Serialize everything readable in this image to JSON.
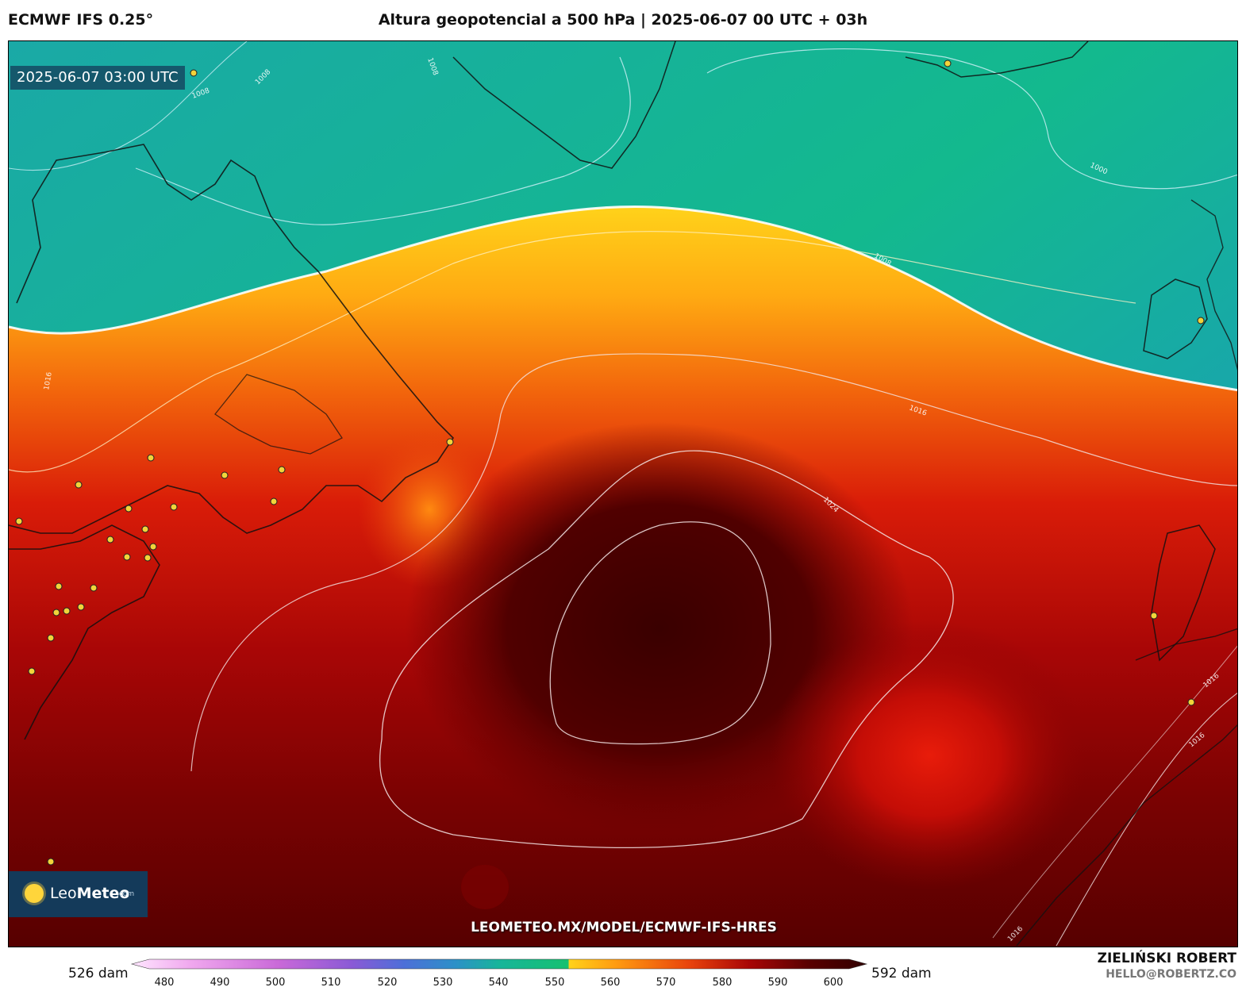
{
  "header": {
    "model": "ECMWF IFS 0.25°",
    "title": "Altura geopotencial a 500 hPa | 2025-06-07 00 UTC + 03h"
  },
  "map": {
    "valid_time": "2025-06-07 03:00 UTC",
    "source_url": "LEOMETEO.MX/MODEL/ECMWF-IFS-HRES",
    "logo": {
      "brand_main": "Leo",
      "brand_bold": "Meteo",
      "brand_suffix": ".com"
    },
    "isobar_labels": [
      "1008",
      "1008",
      "1008",
      "1000",
      "1008",
      "1016",
      "1016",
      "1024",
      "1016",
      "1016",
      "1016"
    ]
  },
  "colorbar": {
    "min_label": "526 dam",
    "max_label": "592 dam",
    "ticks": [
      "480",
      "490",
      "500",
      "510",
      "520",
      "530",
      "540",
      "550",
      "560",
      "570",
      "580",
      "590",
      "600"
    ],
    "colors": [
      "#ffe6ff",
      "#f0a8ee",
      "#c969d8",
      "#8a5ad6",
      "#4d6fd8",
      "#2d90c8",
      "#17b59a",
      "#16c170",
      "#ffd21a",
      "#ff9a10",
      "#e8420c",
      "#a80606",
      "#5a0000",
      "#300000"
    ]
  },
  "footer": {
    "author": "ZIELIŃSKI ROBERT",
    "email": "HELLO@ROBERTZ.CO"
  }
}
